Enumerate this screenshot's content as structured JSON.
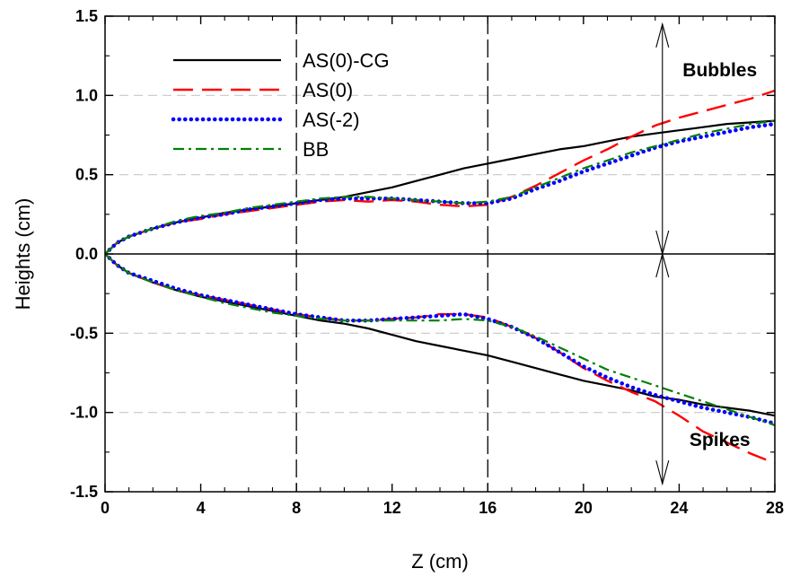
{
  "chart_data": {
    "type": "line",
    "title": "",
    "xlabel": "Z (cm)",
    "ylabel": "Heights (cm)",
    "xlim": [
      0,
      28
    ],
    "ylim": [
      -1.5,
      1.5
    ],
    "x_ticks": [
      0,
      4,
      8,
      12,
      16,
      20,
      24,
      28
    ],
    "x_tick_labels": [
      "0",
      "4",
      "8",
      "12",
      "16",
      "20",
      "24",
      "28"
    ],
    "y_ticks": [
      -1.5,
      -1.0,
      -0.5,
      0.0,
      0.5,
      1.0,
      1.5
    ],
    "y_tick_labels": [
      "-1.5",
      "-1.0",
      "-0.5",
      "0.0",
      "0.5",
      "1.0",
      "1.5"
    ],
    "horizontal_grid": "dashed, at y = ±0.5, ±1.0",
    "zero_line": true,
    "vertical_reference_lines": [
      8,
      16
    ],
    "legend_position": "top-left",
    "annotations": [
      {
        "text": "Bubbles",
        "x": 25.7,
        "y": 1.12
      },
      {
        "text": "Spikes",
        "x": 25.7,
        "y": -1.21
      }
    ],
    "double_arrows": [
      {
        "x": 23.3,
        "y_from": 1.45,
        "y_to": 0.0
      },
      {
        "x": 23.3,
        "y_from": 0.0,
        "y_to": -1.45
      }
    ],
    "series": [
      {
        "name": "AS(0)-CG",
        "color": "#000000",
        "style": "solid",
        "bubbles": [
          [
            0,
            0
          ],
          [
            0.5,
            0.07
          ],
          [
            1,
            0.11
          ],
          [
            2,
            0.16
          ],
          [
            3,
            0.2
          ],
          [
            4,
            0.23
          ],
          [
            5,
            0.26
          ],
          [
            6,
            0.28
          ],
          [
            7,
            0.3
          ],
          [
            8,
            0.32
          ],
          [
            9,
            0.34
          ],
          [
            10,
            0.36
          ],
          [
            11,
            0.39
          ],
          [
            12,
            0.42
          ],
          [
            13,
            0.46
          ],
          [
            14,
            0.5
          ],
          [
            15,
            0.54
          ],
          [
            16,
            0.57
          ],
          [
            17,
            0.6
          ],
          [
            18,
            0.63
          ],
          [
            19,
            0.66
          ],
          [
            20,
            0.68
          ],
          [
            21,
            0.71
          ],
          [
            22,
            0.74
          ],
          [
            23,
            0.76
          ],
          [
            24,
            0.78
          ],
          [
            25,
            0.8
          ],
          [
            26,
            0.82
          ],
          [
            27,
            0.83
          ],
          [
            28,
            0.84
          ]
        ],
        "spikes": [
          [
            0,
            0
          ],
          [
            0.5,
            -0.07
          ],
          [
            1,
            -0.12
          ],
          [
            2,
            -0.18
          ],
          [
            3,
            -0.23
          ],
          [
            4,
            -0.27
          ],
          [
            5,
            -0.3
          ],
          [
            6,
            -0.33
          ],
          [
            7,
            -0.36
          ],
          [
            8,
            -0.39
          ],
          [
            9,
            -0.42
          ],
          [
            10,
            -0.44
          ],
          [
            11,
            -0.47
          ],
          [
            12,
            -0.51
          ],
          [
            13,
            -0.55
          ],
          [
            14,
            -0.58
          ],
          [
            15,
            -0.61
          ],
          [
            16,
            -0.64
          ],
          [
            17,
            -0.68
          ],
          [
            18,
            -0.72
          ],
          [
            19,
            -0.76
          ],
          [
            20,
            -0.8
          ],
          [
            21,
            -0.83
          ],
          [
            22,
            -0.86
          ],
          [
            23,
            -0.9
          ],
          [
            24,
            -0.92
          ],
          [
            25,
            -0.95
          ],
          [
            26,
            -0.97
          ],
          [
            27,
            -0.99
          ],
          [
            28,
            -1.02
          ]
        ]
      },
      {
        "name": "AS(0)",
        "color": "#ff0000",
        "style": "dashed",
        "bubbles": [
          [
            0,
            0
          ],
          [
            0.5,
            0.07
          ],
          [
            1,
            0.11
          ],
          [
            2,
            0.16
          ],
          [
            3,
            0.2
          ],
          [
            4,
            0.22
          ],
          [
            5,
            0.25
          ],
          [
            6,
            0.27
          ],
          [
            7,
            0.29
          ],
          [
            8,
            0.31
          ],
          [
            9,
            0.33
          ],
          [
            10,
            0.34
          ],
          [
            11,
            0.33
          ],
          [
            12,
            0.34
          ],
          [
            13,
            0.33
          ],
          [
            14,
            0.31
          ],
          [
            15,
            0.3
          ],
          [
            16,
            0.31
          ],
          [
            17,
            0.36
          ],
          [
            18,
            0.43
          ],
          [
            19,
            0.51
          ],
          [
            20,
            0.59
          ],
          [
            21,
            0.66
          ],
          [
            22,
            0.74
          ],
          [
            23,
            0.81
          ],
          [
            24,
            0.86
          ],
          [
            25,
            0.9
          ],
          [
            26,
            0.94
          ],
          [
            27,
            0.98
          ],
          [
            28,
            1.03
          ]
        ],
        "spikes": [
          [
            0,
            0
          ],
          [
            0.5,
            -0.07
          ],
          [
            1,
            -0.12
          ],
          [
            2,
            -0.18
          ],
          [
            3,
            -0.23
          ],
          [
            4,
            -0.26
          ],
          [
            5,
            -0.29
          ],
          [
            6,
            -0.32
          ],
          [
            7,
            -0.35
          ],
          [
            8,
            -0.38
          ],
          [
            9,
            -0.4
          ],
          [
            10,
            -0.42
          ],
          [
            11,
            -0.42
          ],
          [
            12,
            -0.41
          ],
          [
            13,
            -0.4
          ],
          [
            14,
            -0.38
          ],
          [
            15,
            -0.38
          ],
          [
            16,
            -0.4
          ],
          [
            17,
            -0.46
          ],
          [
            18,
            -0.53
          ],
          [
            19,
            -0.62
          ],
          [
            20,
            -0.72
          ],
          [
            21,
            -0.8
          ],
          [
            22,
            -0.87
          ],
          [
            23,
            -0.93
          ],
          [
            24,
            -1.02
          ],
          [
            25,
            -1.12
          ],
          [
            26,
            -1.19
          ],
          [
            27,
            -1.26
          ],
          [
            28,
            -1.32
          ]
        ]
      },
      {
        "name": "AS(-2)",
        "color": "#0000ff",
        "style": "dotted",
        "bubbles": [
          [
            0,
            0
          ],
          [
            0.5,
            0.07
          ],
          [
            1,
            0.11
          ],
          [
            2,
            0.16
          ],
          [
            3,
            0.2
          ],
          [
            4,
            0.23
          ],
          [
            5,
            0.25
          ],
          [
            6,
            0.28
          ],
          [
            7,
            0.3
          ],
          [
            8,
            0.32
          ],
          [
            9,
            0.34
          ],
          [
            10,
            0.35
          ],
          [
            11,
            0.35
          ],
          [
            12,
            0.35
          ],
          [
            13,
            0.34
          ],
          [
            14,
            0.33
          ],
          [
            15,
            0.32
          ],
          [
            16,
            0.32
          ],
          [
            17,
            0.35
          ],
          [
            18,
            0.41
          ],
          [
            19,
            0.46
          ],
          [
            20,
            0.52
          ],
          [
            21,
            0.57
          ],
          [
            22,
            0.62
          ],
          [
            23,
            0.67
          ],
          [
            24,
            0.71
          ],
          [
            25,
            0.74
          ],
          [
            26,
            0.77
          ],
          [
            27,
            0.8
          ],
          [
            28,
            0.82
          ]
        ],
        "spikes": [
          [
            0,
            0
          ],
          [
            0.5,
            -0.07
          ],
          [
            1,
            -0.12
          ],
          [
            2,
            -0.17
          ],
          [
            3,
            -0.22
          ],
          [
            4,
            -0.26
          ],
          [
            5,
            -0.29
          ],
          [
            6,
            -0.32
          ],
          [
            7,
            -0.35
          ],
          [
            8,
            -0.38
          ],
          [
            9,
            -0.4
          ],
          [
            10,
            -0.42
          ],
          [
            11,
            -0.42
          ],
          [
            12,
            -0.41
          ],
          [
            13,
            -0.4
          ],
          [
            14,
            -0.39
          ],
          [
            15,
            -0.38
          ],
          [
            16,
            -0.41
          ],
          [
            17,
            -0.46
          ],
          [
            18,
            -0.53
          ],
          [
            19,
            -0.62
          ],
          [
            20,
            -0.71
          ],
          [
            21,
            -0.78
          ],
          [
            22,
            -0.84
          ],
          [
            23,
            -0.89
          ],
          [
            24,
            -0.93
          ],
          [
            25,
            -0.97
          ],
          [
            26,
            -1.0
          ],
          [
            27,
            -1.03
          ],
          [
            28,
            -1.07
          ]
        ]
      },
      {
        "name": "BB",
        "color": "#008000",
        "style": "dash-dot",
        "bubbles": [
          [
            0,
            0
          ],
          [
            0.5,
            0.07
          ],
          [
            1,
            0.11
          ],
          [
            2,
            0.16
          ],
          [
            3,
            0.21
          ],
          [
            4,
            0.24
          ],
          [
            5,
            0.26
          ],
          [
            6,
            0.29
          ],
          [
            7,
            0.31
          ],
          [
            8,
            0.33
          ],
          [
            9,
            0.35
          ],
          [
            10,
            0.36
          ],
          [
            11,
            0.36
          ],
          [
            12,
            0.35
          ],
          [
            13,
            0.34
          ],
          [
            14,
            0.33
          ],
          [
            15,
            0.32
          ],
          [
            16,
            0.33
          ],
          [
            17,
            0.36
          ],
          [
            18,
            0.42
          ],
          [
            19,
            0.48
          ],
          [
            20,
            0.54
          ],
          [
            21,
            0.59
          ],
          [
            22,
            0.64
          ],
          [
            23,
            0.68
          ],
          [
            24,
            0.72
          ],
          [
            25,
            0.76
          ],
          [
            26,
            0.79
          ],
          [
            27,
            0.82
          ],
          [
            28,
            0.84
          ]
        ],
        "spikes": [
          [
            0,
            0
          ],
          [
            0.5,
            -0.07
          ],
          [
            1,
            -0.12
          ],
          [
            2,
            -0.18
          ],
          [
            3,
            -0.23
          ],
          [
            4,
            -0.27
          ],
          [
            5,
            -0.31
          ],
          [
            6,
            -0.34
          ],
          [
            7,
            -0.37
          ],
          [
            8,
            -0.39
          ],
          [
            9,
            -0.41
          ],
          [
            10,
            -0.42
          ],
          [
            11,
            -0.42
          ],
          [
            12,
            -0.42
          ],
          [
            13,
            -0.42
          ],
          [
            14,
            -0.42
          ],
          [
            15,
            -0.41
          ],
          [
            16,
            -0.42
          ],
          [
            17,
            -0.46
          ],
          [
            18,
            -0.52
          ],
          [
            19,
            -0.59
          ],
          [
            20,
            -0.66
          ],
          [
            21,
            -0.73
          ],
          [
            22,
            -0.78
          ],
          [
            23,
            -0.83
          ],
          [
            24,
            -0.88
          ],
          [
            25,
            -0.93
          ],
          [
            26,
            -0.98
          ],
          [
            27,
            -1.03
          ],
          [
            28,
            -1.08
          ]
        ]
      }
    ]
  }
}
